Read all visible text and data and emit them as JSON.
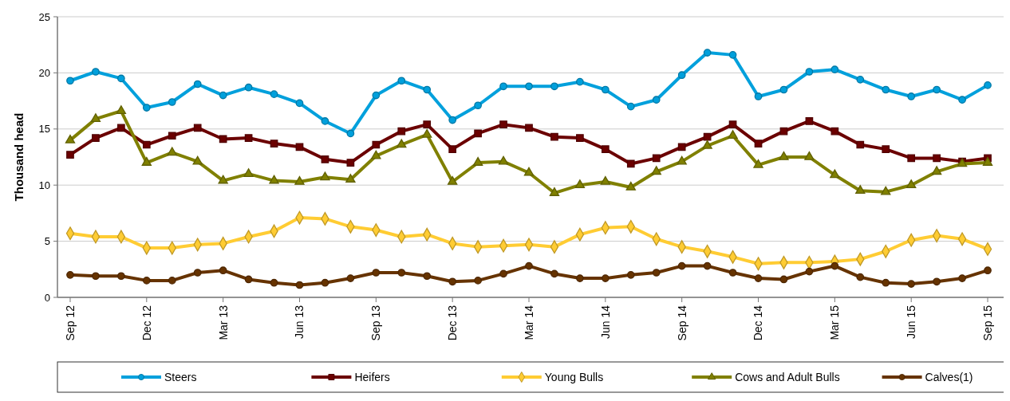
{
  "chart_data": {
    "type": "line",
    "ylabel": "Thousand head",
    "categories": [
      "Sep 12",
      null,
      null,
      "Dec 12",
      null,
      null,
      "Mar 13",
      null,
      null,
      "Jun 13",
      null,
      null,
      "Sep 13",
      null,
      null,
      "Dec 13",
      null,
      null,
      "Mar 14",
      null,
      null,
      "Jun 14",
      null,
      null,
      "Sep 14",
      null,
      null,
      "Dec 14",
      null,
      null,
      "Mar 15",
      null,
      null,
      "Jun 15",
      null,
      null,
      "Sep 15"
    ],
    "series": [
      {
        "name": "Steers",
        "color": "#00a0dc",
        "marker": "circle",
        "values": [
          19.3,
          20.1,
          19.5,
          16.9,
          17.4,
          19.0,
          18.0,
          18.7,
          18.1,
          17.3,
          15.7,
          14.6,
          18.0,
          19.3,
          18.5,
          15.8,
          17.1,
          18.8,
          18.8,
          18.8,
          19.2,
          18.5,
          17.0,
          17.6,
          19.8,
          21.8,
          21.6,
          17.9,
          18.5,
          20.1,
          20.3,
          19.4,
          18.5,
          17.9,
          18.5,
          17.6,
          18.9
        ]
      },
      {
        "name": "Heifers",
        "color": "#6b0000",
        "marker": "square",
        "values": [
          12.7,
          14.2,
          15.1,
          13.6,
          14.4,
          15.1,
          14.1,
          14.2,
          13.7,
          13.4,
          12.3,
          12.0,
          13.6,
          14.8,
          15.4,
          13.2,
          14.6,
          15.4,
          15.1,
          14.3,
          14.2,
          13.2,
          11.9,
          12.4,
          13.4,
          14.3,
          15.4,
          13.7,
          14.8,
          15.7,
          14.8,
          13.6,
          13.2,
          12.4,
          12.4,
          12.1,
          12.4
        ]
      },
      {
        "name": "Young Bulls",
        "color": "#ffcc33",
        "marker": "diamond",
        "values": [
          5.7,
          5.4,
          5.4,
          4.4,
          4.4,
          4.7,
          4.8,
          5.4,
          5.9,
          7.1,
          7.0,
          6.3,
          6.0,
          5.4,
          5.6,
          4.8,
          4.5,
          4.6,
          4.7,
          4.5,
          5.6,
          6.2,
          6.3,
          5.2,
          4.5,
          4.1,
          3.6,
          3.0,
          3.1,
          3.1,
          3.2,
          3.4,
          4.1,
          5.1,
          5.5,
          5.2,
          4.3
        ]
      },
      {
        "name": "Cows and Adult Bulls",
        "color": "#808000",
        "marker": "triangle",
        "values": [
          14.0,
          15.9,
          16.6,
          12.0,
          12.9,
          12.1,
          10.4,
          11.0,
          10.4,
          10.3,
          10.7,
          10.5,
          12.6,
          13.6,
          14.5,
          10.3,
          12.0,
          12.1,
          11.1,
          9.3,
          10.0,
          10.3,
          9.8,
          11.2,
          12.1,
          13.5,
          14.4,
          11.8,
          12.5,
          12.5,
          10.9,
          9.5,
          9.4,
          10.0,
          11.2,
          11.9,
          12.0
        ]
      },
      {
        "name": "Calves(1)",
        "color": "#663300",
        "marker": "circle",
        "values": [
          2.0,
          1.9,
          1.9,
          1.5,
          1.5,
          2.2,
          2.4,
          1.6,
          1.3,
          1.1,
          1.3,
          1.7,
          2.2,
          2.2,
          1.9,
          1.4,
          1.5,
          2.1,
          2.8,
          2.1,
          1.7,
          1.7,
          2.0,
          2.2,
          2.8,
          2.8,
          2.2,
          1.7,
          1.6,
          2.3,
          2.8,
          1.8,
          1.3,
          1.2,
          1.4,
          1.7,
          2.4
        ]
      }
    ],
    "ylim": [
      0,
      25
    ],
    "yticks": [
      0,
      5,
      10,
      15,
      20,
      25
    ],
    "grid": "y",
    "legend": "bottom",
    "line_style": "solid"
  }
}
